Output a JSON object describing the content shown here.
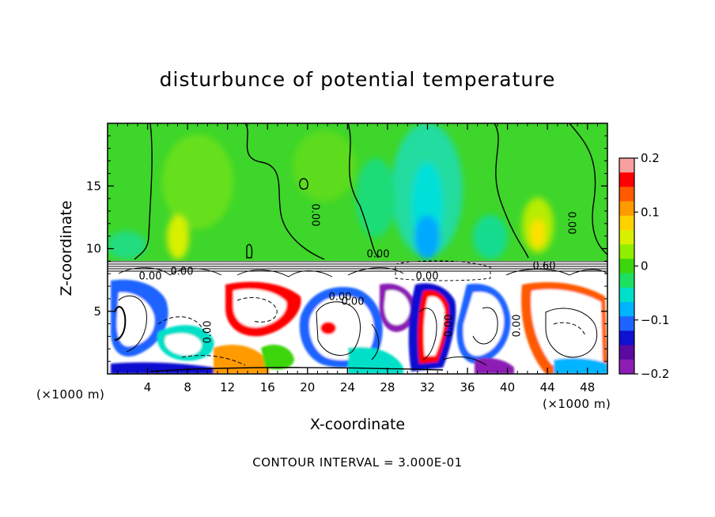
{
  "chart_data": {
    "type": "heatmap",
    "title": "disturbunce of potential temperature",
    "xlabel": "X-coordinate",
    "ylabel": "Z-coordinate",
    "x_unit": "(×1000 m)",
    "y_unit": "(×1000 m)",
    "xlim": [
      0,
      50
    ],
    "ylim": [
      0,
      20
    ],
    "x_ticks": [
      4,
      8,
      12,
      16,
      20,
      24,
      28,
      32,
      36,
      40,
      44,
      48
    ],
    "y_ticks": [
      5,
      10,
      15
    ],
    "colorbar": {
      "min": -0.2,
      "max": 0.2,
      "ticks": [
        0.2,
        0.1,
        0,
        -0.1,
        -0.2
      ],
      "tick_labels": [
        "0.2",
        "0.1",
        "0",
        "−0.1",
        "−0.2"
      ],
      "colors": [
        "#f7a0a0",
        "#ff0000",
        "#ff5a00",
        "#ff9a00",
        "#ffd200",
        "#d8f000",
        "#90ee00",
        "#3cd60e",
        "#1ee060",
        "#00e0c8",
        "#00b4ff",
        "#1e64ff",
        "#1010d0",
        "#5a0aa0",
        "#8c1eb4"
      ]
    },
    "contour_labels": [
      "0.00",
      "0.00",
      "0.00",
      "0.00",
      "0.60",
      "0.00",
      "0.00",
      "0.00",
      "0.00",
      "0.00",
      "0.00",
      "0.00"
    ],
    "contour_interval_text": "CONTOUR INTERVAL = 3.000E-01"
  }
}
